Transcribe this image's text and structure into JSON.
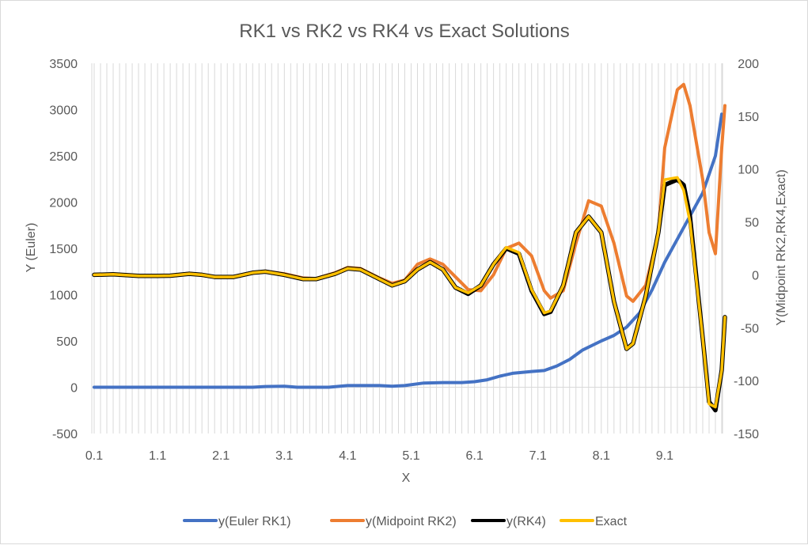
{
  "chart_data": {
    "type": "line",
    "title": "RK1 vs RK2 vs RK4 vs Exact Solutions",
    "xlabel": "X",
    "ylabel_left": "Y (Euler)",
    "ylabel_right": "Y(Midpoint RK2,RK4,Exact)",
    "ylim_left": [
      -500,
      3500
    ],
    "ylim_right": [
      -150,
      200
    ],
    "yticks_left": [
      "-500",
      "0",
      "500",
      "1000",
      "1500",
      "2000",
      "2500",
      "3000",
      "3500"
    ],
    "yticks_right": [
      "-150",
      "-100",
      "-50",
      "0",
      "50",
      "100",
      "150",
      "200"
    ],
    "xticks": [
      "0.1",
      "1.1",
      "2.1",
      "3.1",
      "4.1",
      "5.1",
      "6.1",
      "7.1",
      "8.1",
      "9.1"
    ],
    "x_range": [
      0.1,
      10.0
    ],
    "grid": "vertical",
    "legend_position": "bottom",
    "series": [
      {
        "name": "y(Euler RK1)",
        "axis": "left",
        "color": "#4472C4",
        "points": [
          [
            0.1,
            0
          ],
          [
            1.1,
            0
          ],
          [
            2.1,
            0
          ],
          [
            2.6,
            0
          ],
          [
            2.8,
            8
          ],
          [
            3.1,
            10
          ],
          [
            3.3,
            0
          ],
          [
            3.8,
            0
          ],
          [
            4.1,
            18
          ],
          [
            4.6,
            18
          ],
          [
            4.8,
            10
          ],
          [
            5.0,
            18
          ],
          [
            5.3,
            45
          ],
          [
            5.6,
            50
          ],
          [
            5.9,
            50
          ],
          [
            6.1,
            60
          ],
          [
            6.3,
            80
          ],
          [
            6.5,
            120
          ],
          [
            6.7,
            150
          ],
          [
            7.0,
            170
          ],
          [
            7.2,
            180
          ],
          [
            7.4,
            230
          ],
          [
            7.6,
            300
          ],
          [
            7.8,
            400
          ],
          [
            8.1,
            500
          ],
          [
            8.3,
            560
          ],
          [
            8.5,
            650
          ],
          [
            8.7,
            800
          ],
          [
            8.9,
            1050
          ],
          [
            9.1,
            1350
          ],
          [
            9.3,
            1600
          ],
          [
            9.5,
            1850
          ],
          [
            9.7,
            2100
          ],
          [
            9.9,
            2500
          ],
          [
            10.0,
            2950
          ]
        ]
      },
      {
        "name": "y(Midpoint RK2)",
        "axis": "right",
        "color": "#ED7D31",
        "points": [
          [
            0.1,
            0
          ],
          [
            0.4,
            0.5
          ],
          [
            0.8,
            -1
          ],
          [
            1.1,
            -1
          ],
          [
            1.3,
            -0.8
          ],
          [
            1.6,
            1.5
          ],
          [
            1.8,
            0
          ],
          [
            2.0,
            -2
          ],
          [
            2.3,
            -2
          ],
          [
            2.6,
            2
          ],
          [
            2.8,
            3.5
          ],
          [
            3.1,
            1
          ],
          [
            3.4,
            -3
          ],
          [
            3.6,
            -3.5
          ],
          [
            3.9,
            2
          ],
          [
            4.1,
            7
          ],
          [
            4.3,
            6
          ],
          [
            4.6,
            -3
          ],
          [
            4.8,
            -8
          ],
          [
            5.0,
            -5
          ],
          [
            5.2,
            10
          ],
          [
            5.4,
            15
          ],
          [
            5.6,
            10
          ],
          [
            5.8,
            -2
          ],
          [
            6.0,
            -14
          ],
          [
            6.2,
            -15
          ],
          [
            6.4,
            0
          ],
          [
            6.6,
            25
          ],
          [
            6.8,
            30
          ],
          [
            7.0,
            18
          ],
          [
            7.2,
            -15
          ],
          [
            7.3,
            -22
          ],
          [
            7.5,
            -15
          ],
          [
            7.7,
            30
          ],
          [
            7.9,
            70
          ],
          [
            8.1,
            65
          ],
          [
            8.3,
            30
          ],
          [
            8.5,
            -20
          ],
          [
            8.6,
            -25
          ],
          [
            8.8,
            -10
          ],
          [
            9.0,
            40
          ],
          [
            9.1,
            120
          ],
          [
            9.3,
            175
          ],
          [
            9.4,
            180
          ],
          [
            9.5,
            160
          ],
          [
            9.7,
            90
          ],
          [
            9.8,
            40
          ],
          [
            9.9,
            20
          ],
          [
            10.0,
            120
          ],
          [
            10.05,
            160
          ]
        ]
      },
      {
        "name": "y(RK4)",
        "axis": "right",
        "color": "#000000",
        "points": [
          [
            0.1,
            0
          ],
          [
            0.4,
            0.5
          ],
          [
            0.8,
            -1
          ],
          [
            1.1,
            -1
          ],
          [
            1.3,
            -0.8
          ],
          [
            1.6,
            1
          ],
          [
            1.8,
            0
          ],
          [
            2.0,
            -2
          ],
          [
            2.3,
            -2
          ],
          [
            2.6,
            2
          ],
          [
            2.8,
            3
          ],
          [
            3.1,
            0
          ],
          [
            3.4,
            -4
          ],
          [
            3.6,
            -4
          ],
          [
            3.9,
            1
          ],
          [
            4.1,
            6
          ],
          [
            4.3,
            5
          ],
          [
            4.6,
            -4
          ],
          [
            4.8,
            -10
          ],
          [
            5.0,
            -6
          ],
          [
            5.2,
            5
          ],
          [
            5.4,
            12
          ],
          [
            5.6,
            5
          ],
          [
            5.8,
            -12
          ],
          [
            6.0,
            -18
          ],
          [
            6.2,
            -10
          ],
          [
            6.4,
            10
          ],
          [
            6.6,
            25
          ],
          [
            6.8,
            20
          ],
          [
            7.0,
            -15
          ],
          [
            7.2,
            -37
          ],
          [
            7.3,
            -35
          ],
          [
            7.5,
            -10
          ],
          [
            7.7,
            40
          ],
          [
            7.9,
            55
          ],
          [
            8.1,
            40
          ],
          [
            8.3,
            -25
          ],
          [
            8.5,
            -70
          ],
          [
            8.6,
            -65
          ],
          [
            8.8,
            -20
          ],
          [
            9.0,
            40
          ],
          [
            9.1,
            85
          ],
          [
            9.3,
            90
          ],
          [
            9.4,
            85
          ],
          [
            9.5,
            55
          ],
          [
            9.7,
            -60
          ],
          [
            9.8,
            -120
          ],
          [
            9.9,
            -128
          ],
          [
            10.0,
            -90
          ],
          [
            10.05,
            -40
          ]
        ]
      },
      {
        "name": "Exact",
        "axis": "right",
        "color": "#FFC000",
        "points": [
          [
            0.1,
            0
          ],
          [
            0.4,
            0.5
          ],
          [
            0.8,
            -1
          ],
          [
            1.1,
            -1
          ],
          [
            1.3,
            -0.8
          ],
          [
            1.6,
            1
          ],
          [
            1.8,
            0
          ],
          [
            2.0,
            -2
          ],
          [
            2.3,
            -2
          ],
          [
            2.6,
            2
          ],
          [
            2.8,
            3
          ],
          [
            3.1,
            0
          ],
          [
            3.4,
            -4
          ],
          [
            3.6,
            -4
          ],
          [
            3.9,
            1
          ],
          [
            4.1,
            6
          ],
          [
            4.3,
            5
          ],
          [
            4.6,
            -4
          ],
          [
            4.8,
            -10
          ],
          [
            5.0,
            -6
          ],
          [
            5.2,
            5
          ],
          [
            5.4,
            12
          ],
          [
            5.6,
            5
          ],
          [
            5.8,
            -12
          ],
          [
            6.0,
            -17
          ],
          [
            6.2,
            -10
          ],
          [
            6.4,
            10
          ],
          [
            6.6,
            26
          ],
          [
            6.8,
            21
          ],
          [
            7.0,
            -14
          ],
          [
            7.2,
            -36
          ],
          [
            7.3,
            -34
          ],
          [
            7.5,
            -10
          ],
          [
            7.7,
            40
          ],
          [
            7.9,
            55
          ],
          [
            8.1,
            40
          ],
          [
            8.3,
            -25
          ],
          [
            8.5,
            -70
          ],
          [
            8.6,
            -65
          ],
          [
            8.8,
            -20
          ],
          [
            9.0,
            40
          ],
          [
            9.1,
            90
          ],
          [
            9.3,
            92
          ],
          [
            9.4,
            80
          ],
          [
            9.5,
            50
          ],
          [
            9.7,
            -60
          ],
          [
            9.8,
            -122
          ],
          [
            9.9,
            -125
          ],
          [
            10.0,
            -90
          ],
          [
            10.05,
            -40
          ]
        ]
      }
    ]
  }
}
